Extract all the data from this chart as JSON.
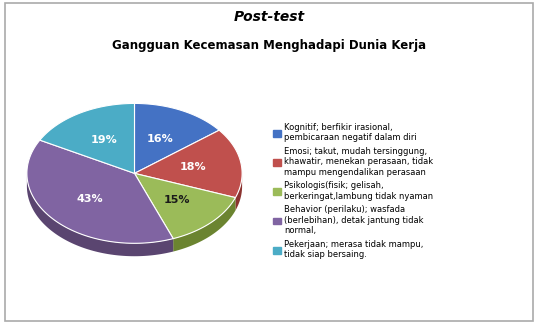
{
  "title_line1": "Post-test",
  "title_line2": "Gangguan Kecemasan Menghadapi Dunia Kerja",
  "slices": [
    16,
    18,
    15,
    43,
    19
  ],
  "colors_top": [
    "#4472C4",
    "#C0504D",
    "#9BBB59",
    "#8064A2",
    "#4BACC6"
  ],
  "colors_side": [
    "#2E4F8A",
    "#8B3330",
    "#6B8430",
    "#5A4570",
    "#2D7A8A"
  ],
  "labels_pct": [
    "16%",
    "18%",
    "15%",
    "43%",
    "19%"
  ],
  "legend_labels": [
    "Kognitif; berfikir irasional,\npembicaraan negatif dalam diri",
    "Emosi; takut, mudah tersinggung,\nkhawatir, menekan perasaan, tidak\nmampu mengendalikan perasaan",
    "Psikologis(fisik; gelisah,\nberkeringat,lambung tidak nyaman",
    "Behavior (perilaku); wasfada\n(berlebihan), detak jantung tidak\nnormal,",
    "Pekerjaan; merasa tidak mampu,\ntidak siap bersaing."
  ],
  "startangle": 90,
  "background_color": "#FFFFFF",
  "border_color": "#AAAAAA",
  "depth": 0.12
}
